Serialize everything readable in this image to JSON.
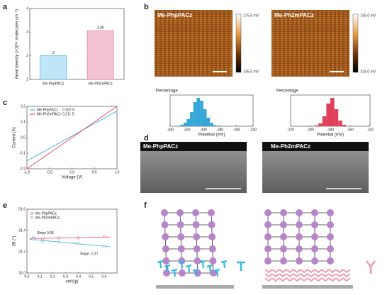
{
  "panel_labels": [
    "a",
    "b",
    "c",
    "d",
    "e",
    "f"
  ],
  "afm": [
    {
      "title": "Me-PhpPACz",
      "scale_top": "-275.0 mV",
      "scale_bottom": "-335.0 mV"
    },
    {
      "title": "Me-Ph2mPACz",
      "scale_top": "-155.0 mV",
      "scale_bottom": "-215.0 mV"
    }
  ],
  "sem": [
    "Me-PhpPACz",
    "Me-Ph2mPACz"
  ],
  "chart_data": [
    {
      "type": "bar",
      "ylabel": "Areal density (×10¹⁴ molecules cm⁻²)",
      "categories": [
        "Me-PhpPACz",
        "Me-Ph2mPACz"
      ],
      "values": [
        2,
        3.06
      ],
      "colors": [
        "#bfe6f7",
        "#f4c3d3"
      ],
      "edge_colors": [
        "#35a7d6",
        "#e0708f"
      ],
      "ylim": [
        1,
        4
      ],
      "yticks": [
        1,
        2,
        3,
        4
      ]
    },
    {
      "type": "histogram",
      "xlabel": "Potential (mV)",
      "ylabel": "Percentage",
      "color": "#35a7d6",
      "bins": [
        -332,
        -328,
        -324,
        -320,
        -316,
        -312,
        -308,
        -304,
        -300,
        -296,
        -292,
        -288,
        -284
      ],
      "values": [
        0.2,
        0.5,
        1.2,
        2.5,
        5,
        8.5,
        10,
        9,
        6,
        3,
        1.2,
        0.4
      ],
      "xlim": [
        -340,
        -240
      ],
      "xticks": [
        -340,
        -320,
        -300,
        -280,
        -260,
        -240
      ],
      "ylim": [
        0,
        11
      ]
    },
    {
      "type": "histogram",
      "xlabel": "Potential (mV)",
      "ylabel": "Percentage",
      "color": "#e0405a",
      "bins": [
        -196,
        -192,
        -188,
        -184,
        -180,
        -176,
        -172,
        -168,
        -164
      ],
      "values": [
        0.3,
        1,
        3.5,
        8,
        10,
        6,
        2,
        0.5
      ],
      "xlim": [
        -220,
        -140
      ],
      "xticks": [
        -220,
        -200,
        -180,
        -160,
        -140
      ],
      "ylim": [
        0,
        11
      ]
    },
    {
      "type": "line",
      "xlabel": "Voltage (V)",
      "ylabel": "Current (A)",
      "x": [
        -1,
        1
      ],
      "series": [
        {
          "name": "Me-PhpPACz",
          "note": "0.167 S",
          "color": "#35a7d6",
          "values": [
            -0.15,
            0.17
          ]
        },
        {
          "name": "Me-Ph2mPACz",
          "note": "0.211 S",
          "color": "#e0405a",
          "values": [
            -0.2,
            0.2
          ]
        }
      ],
      "xlim": [
        -1,
        1
      ],
      "xticks": [
        {
          "value": -1,
          "label": "-1.0"
        },
        {
          "value": -0.5,
          "label": "-0.5"
        },
        {
          "value": 0,
          "label": "0.0"
        },
        {
          "value": 0.5,
          "label": "0.5"
        },
        {
          "value": 1,
          "label": "1.0"
        }
      ],
      "ylim": [
        -0.2,
        0.2
      ],
      "yticks": [
        -0.2,
        -0.1,
        {
          "value": 0,
          "label": "0.0"
        },
        0.1,
        0.2
      ]
    },
    {
      "type": "scatter",
      "xlabel": "sin²(ψ)",
      "ylabel": "2θ (°)",
      "annotations": [
        "Slope 0.06",
        "Slope -0.17"
      ],
      "series": [
        {
          "name": "Me-PhpPACz",
          "color": "#e0405a",
          "x": [
            0.05,
            0.12,
            0.25,
            0.4,
            0.6
          ],
          "values": [
            31.33,
            31.32,
            31.33,
            31.33,
            31.34
          ]
        },
        {
          "name": "Me-Ph2mPACz",
          "color": "#35a7d6",
          "x": [
            0.05,
            0.12,
            0.25,
            0.4,
            0.6
          ],
          "values": [
            31.32,
            31.3,
            31.29,
            31.28,
            31.25
          ]
        }
      ],
      "xlim": [
        0,
        0.7
      ],
      "xticks": [
        {
          "value": 0,
          "label": "0.0"
        },
        0.1,
        0.2,
        0.3,
        0.4,
        0.5,
        0.6
      ],
      "ylim": [
        31,
        31.6
      ],
      "yticks": [
        {
          "value": 31,
          "label": "31.0"
        },
        31.2,
        31.4,
        31.6
      ]
    }
  ]
}
